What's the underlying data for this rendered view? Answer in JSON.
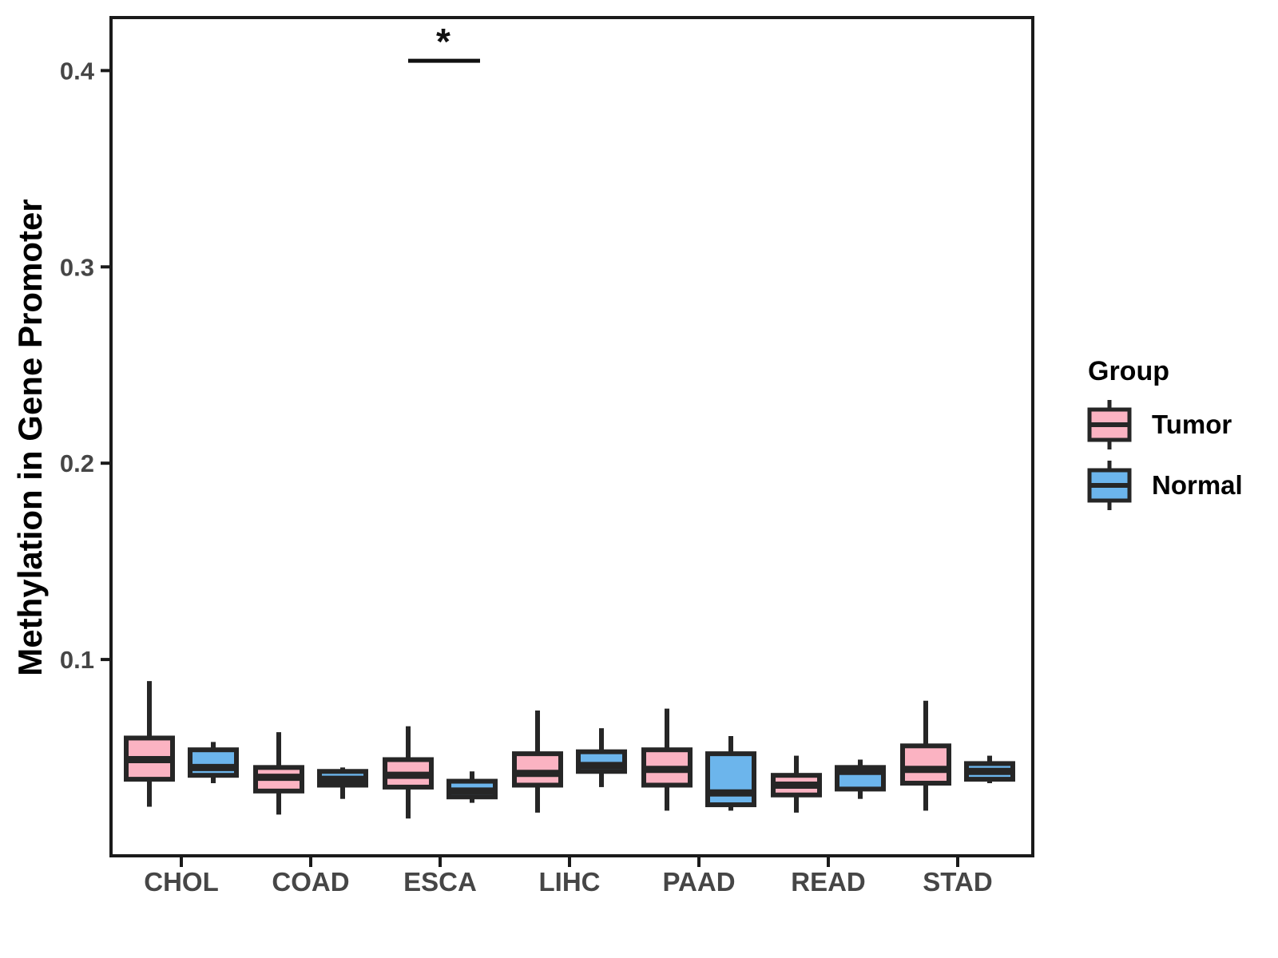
{
  "figure": {
    "background": "#FFFFFF"
  },
  "legend": {
    "title": "Group",
    "entries": [
      {
        "label": "Tumor",
        "color": "#FBB3C2"
      },
      {
        "label": "Normal",
        "color": "#6CB5EC"
      }
    ]
  },
  "style": {
    "box_border": "#262626",
    "axis_color": "#1A1A1A",
    "tick_label_color": "#464646",
    "significance_color": "#111111"
  },
  "chart_data": {
    "type": "box",
    "title": "",
    "xlabel": "",
    "ylabel": "Methylation in Gene Promoter",
    "categories": [
      "CHOL",
      "COAD",
      "ESCA",
      "LIHC",
      "PAAD",
      "READ",
      "STAD"
    ],
    "groups": [
      {
        "name": "Tumor",
        "color": "#FBB3C2"
      },
      {
        "name": "Normal",
        "color": "#6CB5EC"
      }
    ],
    "series": [
      {
        "name": "Tumor",
        "boxes": [
          {
            "min": 0.025,
            "q1": 0.039,
            "median": 0.049,
            "q3": 0.06,
            "max": 0.089
          },
          {
            "min": 0.021,
            "q1": 0.033,
            "median": 0.04,
            "q3": 0.045,
            "max": 0.063
          },
          {
            "min": 0.019,
            "q1": 0.035,
            "median": 0.041,
            "q3": 0.049,
            "max": 0.066
          },
          {
            "min": 0.022,
            "q1": 0.036,
            "median": 0.042,
            "q3": 0.052,
            "max": 0.074
          },
          {
            "min": 0.023,
            "q1": 0.036,
            "median": 0.044,
            "q3": 0.054,
            "max": 0.075
          },
          {
            "min": 0.022,
            "q1": 0.031,
            "median": 0.036,
            "q3": 0.041,
            "max": 0.051
          },
          {
            "min": 0.023,
            "q1": 0.037,
            "median": 0.044,
            "q3": 0.056,
            "max": 0.079
          }
        ]
      },
      {
        "name": "Normal",
        "boxes": [
          {
            "min": 0.037,
            "q1": 0.041,
            "median": 0.045,
            "q3": 0.054,
            "max": 0.058
          },
          {
            "min": 0.029,
            "q1": 0.036,
            "median": 0.039,
            "q3": 0.043,
            "max": 0.045
          },
          {
            "min": 0.027,
            "q1": 0.03,
            "median": 0.033,
            "q3": 0.038,
            "max": 0.043
          },
          {
            "min": 0.035,
            "q1": 0.043,
            "median": 0.046,
            "q3": 0.053,
            "max": 0.065
          },
          {
            "min": 0.023,
            "q1": 0.026,
            "median": 0.032,
            "q3": 0.052,
            "max": 0.061
          },
          {
            "min": 0.029,
            "q1": 0.034,
            "median": 0.043,
            "q3": 0.045,
            "max": 0.049
          },
          {
            "min": 0.037,
            "q1": 0.039,
            "median": 0.043,
            "q3": 0.047,
            "max": 0.051
          }
        ]
      }
    ],
    "ylim": [
      0,
      0.427
    ],
    "yticks": [
      0.1,
      0.2,
      0.3,
      0.4
    ],
    "ytick_labels": [
      "0.1",
      "0.2",
      "0.3",
      "0.4"
    ],
    "grid": false,
    "legend_position": "right",
    "significance": {
      "category": "ESCA",
      "label": "*",
      "y": 0.405,
      "compares": [
        "Tumor",
        "Normal"
      ]
    }
  }
}
